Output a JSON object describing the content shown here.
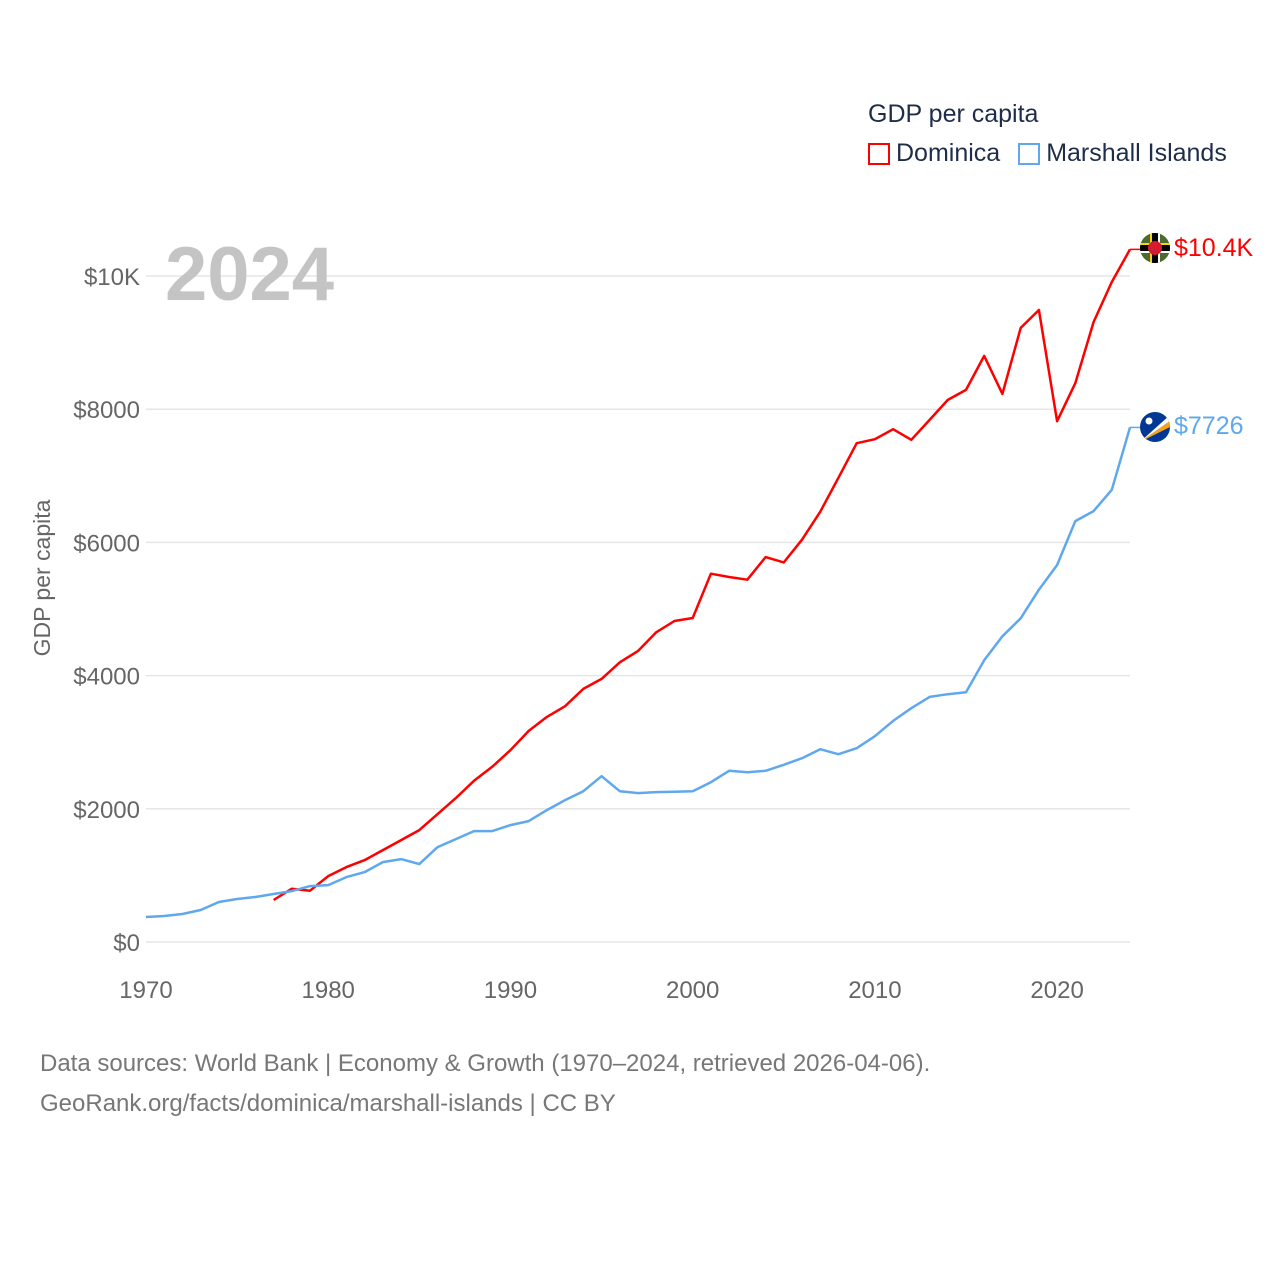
{
  "chart_data": {
    "type": "line",
    "title": "GDP per capita",
    "year_label": "2024",
    "ylabel": "GDP per capita",
    "xlabel": "",
    "xlim": [
      1970,
      2024
    ],
    "ylim": [
      0,
      10000
    ],
    "x_ticks": [
      "1970",
      "1980",
      "1990",
      "2000",
      "2010",
      "2020"
    ],
    "x_tick_values": [
      1970,
      1980,
      1990,
      2000,
      2010,
      2020
    ],
    "y_ticks": [
      "$0",
      "$2000",
      "$4000",
      "$6000",
      "$8000",
      "$10K"
    ],
    "y_tick_values": [
      0,
      2000,
      4000,
      6000,
      8000,
      10000
    ],
    "grid": true,
    "legend_position": "top-right",
    "series": [
      {
        "name": "Dominica",
        "color": "#ff0000",
        "end_label": "$10.4K",
        "flag": "dominica-flag",
        "start_year": 1977,
        "values": [
          630,
          800,
          770,
          990,
          1125,
          1230,
          1380,
          1530,
          1680,
          1920,
          2160,
          2420,
          2630,
          2880,
          3170,
          3380,
          3540,
          3800,
          3950,
          4200,
          4370,
          4650,
          4820,
          4865,
          5530,
          5480,
          5440,
          5780,
          5700,
          6040,
          6460,
          6970,
          7490,
          7550,
          7700,
          7540,
          7840,
          8140,
          8290,
          8800,
          8230,
          9220,
          9490,
          7820,
          8390,
          9310,
          9910,
          10400
        ]
      },
      {
        "name": "Marshall Islands",
        "color": "#5fa8ee",
        "end_label": "$7726",
        "flag": "marshall-islands-flag",
        "start_year": 1970,
        "values": [
          375,
          390,
          420,
          480,
          600,
          645,
          675,
          720,
          765,
          840,
          855,
          975,
          1050,
          1200,
          1245,
          1170,
          1425,
          1545,
          1665,
          1665,
          1755,
          1815,
          1980,
          2130,
          2265,
          2490,
          2265,
          2235,
          2250,
          2255,
          2265,
          2400,
          2570,
          2550,
          2570,
          2660,
          2760,
          2895,
          2820,
          2910,
          3090,
          3320,
          3510,
          3680,
          3720,
          3750,
          4230,
          4590,
          4860,
          5290,
          5660,
          6320,
          6470,
          6790,
          7726
        ]
      }
    ]
  },
  "footer": {
    "line1": "Data sources: World Bank | Economy & Growth (1970–2024, retrieved 2026-04-06).",
    "line2": "GeoRank.org/facts/dominica/marshall-islands | CC BY"
  }
}
